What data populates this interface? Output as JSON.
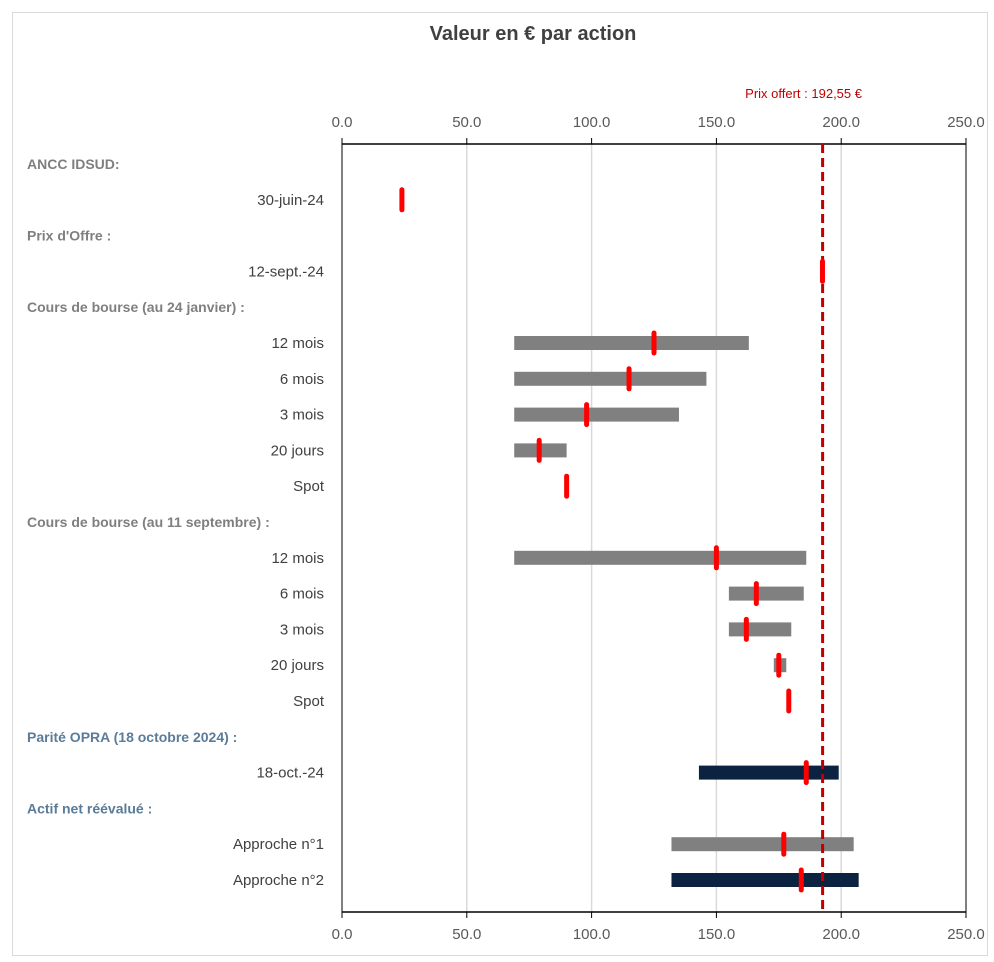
{
  "chart_data": {
    "type": "bar",
    "title": "Valeur en € par action",
    "xlim": [
      0,
      250
    ],
    "xticks": [
      "0.0",
      "50.0",
      "100.0",
      "150.0",
      "200.0",
      "250.0"
    ],
    "grid": true,
    "reference_line": {
      "label": "Prix offert : 192,55 €",
      "value": 192.55,
      "color": "#c00000"
    },
    "colors": {
      "range_gray": "#808080",
      "range_navy": "#0b2341",
      "marker": "#ff0000",
      "section_gray": "#7f7f7f",
      "section_blue": "#5b7c99"
    },
    "rows": [
      {
        "kind": "section",
        "label": "ANCC IDSUD:",
        "style": "gray"
      },
      {
        "kind": "item",
        "label": "30-juin-24",
        "marker": 24
      },
      {
        "kind": "section",
        "label": "Prix d'Offre :",
        "style": "gray"
      },
      {
        "kind": "item",
        "label": "12-sept.-24",
        "marker": 192.5
      },
      {
        "kind": "section",
        "label": "Cours de bourse (au 24 janvier) :",
        "style": "gray"
      },
      {
        "kind": "item",
        "label": "12 mois",
        "low": 69,
        "high": 163,
        "marker": 125,
        "color": "gray"
      },
      {
        "kind": "item",
        "label": "6 mois",
        "low": 69,
        "high": 146,
        "marker": 115,
        "color": "gray"
      },
      {
        "kind": "item",
        "label": "3 mois",
        "low": 69,
        "high": 135,
        "marker": 98,
        "color": "gray"
      },
      {
        "kind": "item",
        "label": "20 jours",
        "low": 69,
        "high": 90,
        "marker": 79,
        "color": "gray"
      },
      {
        "kind": "item",
        "label": "Spot",
        "marker": 90
      },
      {
        "kind": "section",
        "label": "Cours de bourse (au 11 septembre) :",
        "style": "gray"
      },
      {
        "kind": "item",
        "label": "12 mois",
        "low": 69,
        "high": 186,
        "marker": 150,
        "color": "gray"
      },
      {
        "kind": "item",
        "label": "6 mois",
        "low": 155,
        "high": 185,
        "marker": 166,
        "color": "gray"
      },
      {
        "kind": "item",
        "label": "3 mois",
        "low": 155,
        "high": 180,
        "marker": 162,
        "color": "gray"
      },
      {
        "kind": "item",
        "label": "20 jours",
        "low": 173,
        "high": 178,
        "marker": 175,
        "color": "gray"
      },
      {
        "kind": "item",
        "label": "Spot",
        "marker": 179
      },
      {
        "kind": "section",
        "label": "Parité OPRA (18 octobre 2024) :",
        "style": "blue"
      },
      {
        "kind": "item",
        "label": "18-oct.-24",
        "low": 143,
        "high": 199,
        "marker": 186,
        "color": "navy"
      },
      {
        "kind": "section",
        "label": "Actif net réévalué :",
        "style": "blue"
      },
      {
        "kind": "item",
        "label": "Approche n°1",
        "low": 132,
        "high": 205,
        "marker": 177,
        "color": "gray"
      },
      {
        "kind": "item",
        "label": "Approche n°2",
        "low": 132,
        "high": 207,
        "marker": 184,
        "color": "navy"
      }
    ]
  }
}
